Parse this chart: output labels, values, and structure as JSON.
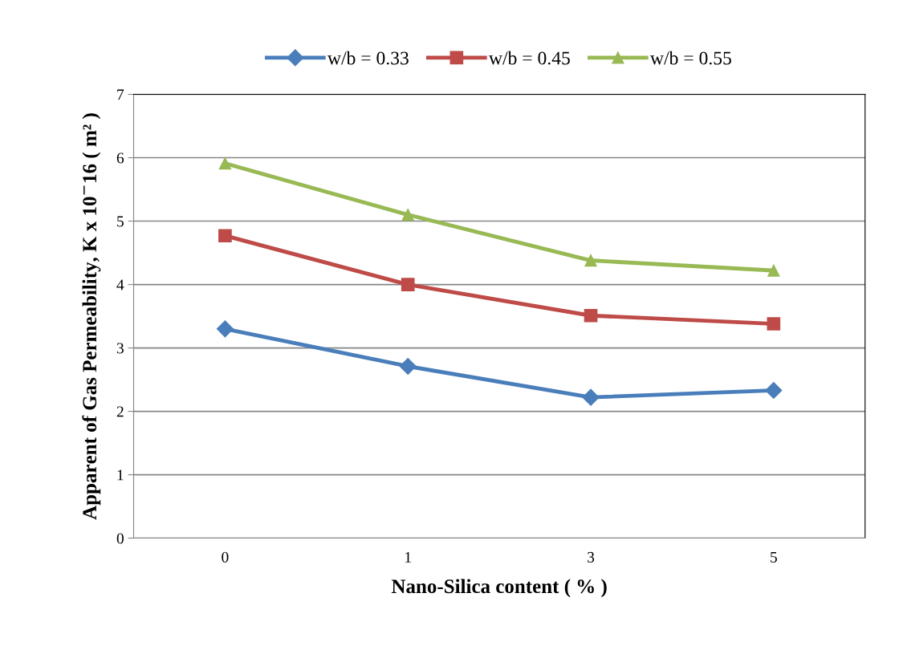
{
  "chart_data": {
    "type": "line",
    "xlabel": "Nano-Silica content ( % )",
    "ylabel": "Apparent of Gas Permeability, K x 10$^{−}$16 ( m² )",
    "categories": [
      "0",
      "1",
      "3",
      "5"
    ],
    "series": [
      {
        "name": "w/b = 0.33",
        "color": "#4a7ebb",
        "values": [
          3.3,
          2.71,
          2.22,
          2.33
        ],
        "marker": "diamond"
      },
      {
        "name": "w/b = 0.45",
        "color": "#be4b48",
        "values": [
          4.77,
          4.0,
          3.51,
          3.38
        ],
        "marker": "square"
      },
      {
        "name": "w/b = 0.55",
        "color": "#98b954",
        "values": [
          5.91,
          5.1,
          4.38,
          4.22
        ],
        "marker": "triangle"
      }
    ],
    "ylim": [
      0,
      7
    ],
    "yticks": [
      0,
      1,
      2,
      3,
      4,
      5,
      6,
      7
    ],
    "grid": "y",
    "legend": "top",
    "line_style": "solid"
  }
}
